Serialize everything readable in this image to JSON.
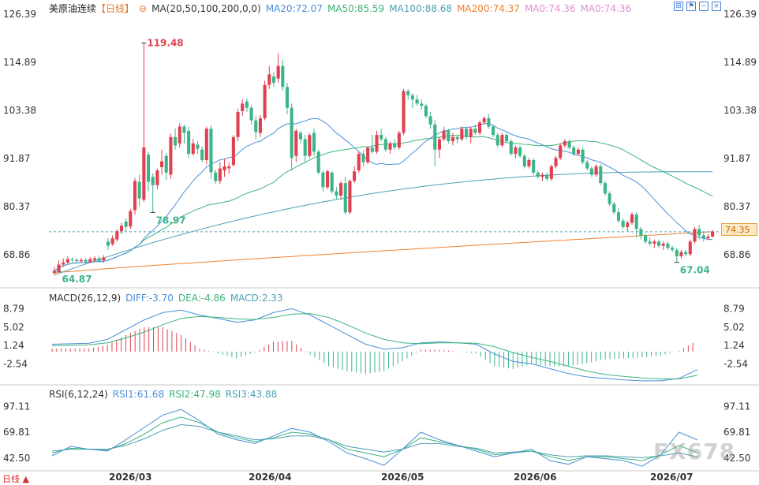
{
  "header": {
    "instrument": "美原油连续",
    "period": "【日线】",
    "main_indicator": "MA(20,50,100,200,0,0)",
    "ma20": "MA20:72.07",
    "ma50": "MA50:85.59",
    "ma100": "MA100:88.68",
    "ma200": "MA200:74.37",
    "ma0a": "MA0:74.36",
    "ma0b": "MA0:74.36"
  },
  "macd_header": {
    "name": "MACD(26,12,9)",
    "diff": "DIFF:-3.70",
    "dea": "DEA:-4.86",
    "macd": "MACD:2.33"
  },
  "rsi_header": {
    "name": "RSI(6,12,24)",
    "rsi1": "RSI1:61.68",
    "rsi2": "RSI2:47.98",
    "rsi3": "RSI3:43.88"
  },
  "current_price": "74.35",
  "bottom_label": "日线 ▲",
  "watermark": "FX678",
  "colors": {
    "up": "#e04050",
    "down": "#3cb48a",
    "ma20": "#4a90d9",
    "ma50": "#3cb47a",
    "ma100": "#4aa0b8",
    "ma200": "#f08030",
    "diff": "#4a90d9",
    "dea": "#3cb47a",
    "rsi1": "#4a90d9",
    "rsi2": "#3cb47a",
    "rsi3": "#4aa0b8",
    "axis": "#333333"
  },
  "chart_data": [
    {
      "type": "candlestick",
      "title": "美原油连续",
      "y_ticks": [
        126.39,
        114.89,
        103.38,
        91.87,
        80.37,
        68.86
      ],
      "ylim": [
        61.5,
        126.39
      ],
      "x_tick_labels": [
        "2026/03",
        "2026/04",
        "2026/05",
        "2026/06",
        "2026/07"
      ],
      "annotations": [
        {
          "text": "119.48",
          "value": 119.48,
          "kind": "high"
        },
        {
          "text": "78.97",
          "value": 78.97,
          "kind": "low"
        },
        {
          "text": "67.04",
          "value": 67.04,
          "kind": "low"
        },
        {
          "text": "64.87",
          "value": 64.87,
          "kind": "low"
        }
      ],
      "current_price": 74.35,
      "candles": [
        [
          65,
          64.5,
          66,
          64
        ],
        [
          66.5,
          65,
          67.5,
          64.87
        ],
        [
          67,
          66.5,
          68,
          66
        ],
        [
          67.8,
          67,
          68.5,
          66.5
        ],
        [
          67.6,
          67.8,
          68.2,
          67
        ],
        [
          67.3,
          67.6,
          68,
          66.8
        ],
        [
          67.6,
          67.3,
          68.1,
          66.9
        ],
        [
          67.2,
          67.6,
          68,
          66.6
        ],
        [
          67.8,
          67.2,
          68.3,
          66.8
        ],
        [
          68,
          67.6,
          68.4,
          67.1
        ],
        [
          67.3,
          68,
          68.6,
          67
        ],
        [
          68.2,
          67.5,
          68.8,
          67
        ],
        [
          71,
          72,
          72.8,
          70
        ],
        [
          72.8,
          71.4,
          73.5,
          71
        ],
        [
          74.5,
          72.5,
          75,
          72
        ],
        [
          75.8,
          74.5,
          76.5,
          73.8
        ],
        [
          75.5,
          76.8,
          77.5,
          74.5
        ],
        [
          79.3,
          75.6,
          79.8,
          75
        ],
        [
          86.5,
          79.5,
          87.2,
          78.5
        ],
        [
          82.3,
          86.3,
          88,
          80.5
        ],
        [
          94.5,
          82,
          119.48,
          81.5
        ],
        [
          86.3,
          92.8,
          93.5,
          84
        ],
        [
          85.5,
          87.5,
          88.3,
          79
        ],
        [
          89,
          85.5,
          89.5,
          84.5
        ],
        [
          91.2,
          89.8,
          94,
          88
        ],
        [
          88.5,
          92.5,
          93.2,
          86.8
        ],
        [
          97,
          88,
          97.8,
          87
        ],
        [
          95,
          97,
          99,
          94
        ],
        [
          99.5,
          95.5,
          100.3,
          94.5
        ],
        [
          98,
          99.5,
          100,
          95.5
        ],
        [
          93,
          98.5,
          99.5,
          92
        ],
        [
          95.5,
          93,
          96.5,
          92.5
        ],
        [
          94.2,
          95.2,
          96,
          93
        ],
        [
          91.5,
          94,
          94.8,
          91
        ],
        [
          99,
          91.5,
          99.5,
          90.5
        ],
        [
          88.6,
          99,
          99.8,
          87
        ],
        [
          86.5,
          88.5,
          89.2,
          85.8
        ],
        [
          89.5,
          86.5,
          91,
          85.8
        ],
        [
          90,
          89,
          91.8,
          87.5
        ],
        [
          90,
          89.5,
          91,
          88.2
        ],
        [
          97,
          90.3,
          97.5,
          90
        ],
        [
          103,
          97,
          103.8,
          96
        ],
        [
          105,
          103.2,
          106,
          102
        ],
        [
          104,
          105.5,
          106.2,
          103
        ],
        [
          101,
          104,
          104.6,
          100
        ],
        [
          98.2,
          101,
          102,
          96.5
        ],
        [
          101.5,
          98,
          102.3,
          97
        ],
        [
          109.5,
          101.5,
          110.5,
          101
        ],
        [
          112,
          109.5,
          114,
          108.5
        ],
        [
          110,
          111.5,
          112.5,
          109
        ],
        [
          114,
          111,
          117,
          110
        ],
        [
          109,
          114,
          115.5,
          108
        ],
        [
          104,
          109,
          110,
          102.5
        ],
        [
          92,
          104,
          105,
          89
        ],
        [
          98.5,
          92.5,
          99,
          91
        ],
        [
          96.5,
          98,
          98.5,
          95.5
        ],
        [
          92.5,
          96.5,
          97.5,
          91
        ],
        [
          97.5,
          92.5,
          98,
          92
        ],
        [
          93.5,
          98,
          99,
          92.5
        ],
        [
          88.5,
          93.5,
          94,
          88
        ],
        [
          85,
          88.5,
          89,
          84
        ],
        [
          88.8,
          85,
          89.2,
          84.5
        ],
        [
          84,
          88.5,
          88.8,
          83.5
        ],
        [
          83,
          84,
          85,
          82
        ],
        [
          86,
          83,
          86.5,
          82
        ],
        [
          78.97,
          86,
          87.5,
          78.5
        ],
        [
          86.5,
          79,
          86.8,
          78.5
        ],
        [
          88.8,
          86.5,
          90,
          86
        ],
        [
          93,
          89,
          93.5,
          88.5
        ],
        [
          91,
          93,
          93.8,
          90
        ],
        [
          94.5,
          91,
          94.8,
          90.5
        ],
        [
          93.5,
          94.5,
          97.5,
          93
        ],
        [
          97.5,
          93.5,
          98.5,
          93
        ],
        [
          96.5,
          97.5,
          99,
          96
        ],
        [
          94,
          96.5,
          97,
          93.5
        ],
        [
          95.5,
          94,
          96,
          93
        ],
        [
          94.5,
          95.5,
          96.5,
          94
        ],
        [
          98,
          94.5,
          98.5,
          94
        ],
        [
          108,
          98,
          108.5,
          97.5
        ],
        [
          107,
          108,
          108.5,
          106
        ],
        [
          106,
          107,
          107.5,
          104
        ],
        [
          105,
          106,
          107,
          104.5
        ],
        [
          104.5,
          105,
          106,
          103.5
        ],
        [
          102,
          104.5,
          105,
          101.5
        ],
        [
          100,
          102,
          103,
          99
        ],
        [
          94,
          100,
          101,
          90
        ],
        [
          96.5,
          94,
          97,
          92
        ],
        [
          98.5,
          96.5,
          99.5,
          96
        ],
        [
          96,
          98.5,
          99,
          95.5
        ],
        [
          97,
          96,
          98,
          95
        ],
        [
          96.5,
          97,
          97.5,
          95.5
        ],
        [
          99,
          96.5,
          99.5,
          96
        ],
        [
          97,
          99,
          99.5,
          96.5
        ],
        [
          99,
          97,
          99.5,
          95.5
        ],
        [
          98,
          99,
          100,
          97.5
        ],
        [
          100.5,
          98,
          101,
          97.5
        ],
        [
          101.5,
          100.5,
          102,
          100
        ],
        [
          99.5,
          101.5,
          102.5,
          99
        ],
        [
          97.5,
          99.5,
          100,
          97
        ],
        [
          95,
          97.5,
          98,
          94.5
        ],
        [
          97.5,
          95,
          98,
          94.5
        ],
        [
          96,
          97.5,
          98,
          95.5
        ],
        [
          93,
          96,
          96.5,
          92.5
        ],
        [
          94.5,
          93,
          95,
          92
        ],
        [
          92.5,
          94.5,
          95,
          92
        ],
        [
          90,
          92.5,
          93,
          89.5
        ],
        [
          91.5,
          90,
          92,
          89.5
        ],
        [
          88.5,
          91.5,
          92,
          88
        ],
        [
          87.5,
          88.5,
          89,
          87
        ],
        [
          88,
          87.5,
          88.5,
          86.5
        ],
        [
          87,
          88,
          88.5,
          86.5
        ],
        [
          90,
          87,
          90.5,
          86.5
        ],
        [
          92,
          90,
          92.5,
          89.5
        ],
        [
          95,
          92,
          95.5,
          91.5
        ],
        [
          96,
          95,
          96.5,
          94.5
        ],
        [
          94.5,
          96,
          96.5,
          94
        ],
        [
          93,
          94.5,
          95,
          92.5
        ],
        [
          94,
          93,
          94.5,
          92.5
        ],
        [
          91,
          94,
          94.5,
          90.5
        ],
        [
          89.5,
          91,
          91.5,
          89
        ],
        [
          88,
          89.5,
          90,
          87.5
        ],
        [
          90,
          88,
          90.5,
          87.5
        ],
        [
          86,
          90,
          90.5,
          85.5
        ],
        [
          83.5,
          86,
          86.5,
          83
        ],
        [
          81,
          83.5,
          84,
          80.5
        ],
        [
          79,
          81,
          81.5,
          78.5
        ],
        [
          77,
          79,
          80,
          76.5
        ],
        [
          75.5,
          77,
          77.5,
          75
        ],
        [
          76.5,
          75.5,
          77,
          74.5
        ],
        [
          78.5,
          76.5,
          79,
          76
        ],
        [
          75,
          78.5,
          79,
          73
        ],
        [
          73.5,
          75,
          75.5,
          72.5
        ],
        [
          72,
          73.5,
          74,
          71.5
        ],
        [
          71.5,
          72,
          73,
          71
        ],
        [
          72,
          71.5,
          72.5,
          70.5
        ],
        [
          71,
          72,
          72.5,
          70.5
        ],
        [
          71.5,
          71,
          72,
          70
        ],
        [
          70.5,
          71.5,
          72,
          70
        ],
        [
          70,
          70.5,
          71,
          69.5
        ],
        [
          68.5,
          70,
          70.5,
          67.04
        ],
        [
          69.5,
          68.5,
          70,
          68
        ],
        [
          69,
          69.5,
          70,
          68.5
        ],
        [
          72,
          69,
          72.5,
          68.5
        ],
        [
          75,
          72,
          75.5,
          71.5
        ],
        [
          73.5,
          75,
          76,
          72.5
        ],
        [
          72.8,
          73.5,
          74.2,
          72
        ],
        [
          73.2,
          72.8,
          73.8,
          72.3
        ],
        [
          74.35,
          73.2,
          74.8,
          73
        ]
      ]
    },
    {
      "type": "bar",
      "title": "MACD(26,12,9)",
      "y_ticks": [
        8.79,
        5.02,
        1.24,
        -2.54
      ],
      "ylim": [
        -6.5,
        10
      ],
      "series": [
        {
          "name": "DIFF",
          "values": [
            1.5,
            1.6,
            1.7,
            2.5,
            4.5,
            6.5,
            8.0,
            8.5,
            7.5,
            6.8,
            6.0,
            6.5,
            8.0,
            8.8,
            7.5,
            5.5,
            3.5,
            1.5,
            0.5,
            0.8,
            1.8,
            2.0,
            1.8,
            1.5,
            -0.5,
            -2.0,
            -2.5,
            -3.5,
            -4.5,
            -5.2,
            -5.5,
            -5.8,
            -6.0,
            -6.0,
            -5.5,
            -3.7
          ]
        },
        {
          "name": "DEA",
          "values": [
            1.2,
            1.3,
            1.4,
            1.8,
            2.8,
            4.0,
            5.5,
            6.8,
            7.2,
            7.0,
            6.7,
            6.6,
            7.0,
            7.7,
            7.8,
            7.0,
            5.5,
            3.8,
            2.5,
            1.8,
            1.6,
            1.8,
            1.8,
            1.7,
            1.0,
            -0.2,
            -1.2,
            -2.0,
            -3.0,
            -4.0,
            -4.7,
            -5.1,
            -5.4,
            -5.6,
            -5.6,
            -4.86
          ]
        },
        {
          "name": "MACD",
          "values": [
            0.6,
            0.6,
            0.6,
            1.4,
            3.4,
            5.0,
            5.0,
            3.4,
            0.6,
            -0.4,
            -1.4,
            -0.2,
            2.0,
            2.2,
            -0.6,
            -3.0,
            -4.0,
            -4.6,
            -4.0,
            -2.0,
            0.4,
            0.4,
            0.0,
            -0.4,
            -3.0,
            -3.6,
            -2.6,
            -3.0,
            -3.0,
            -2.4,
            -1.6,
            -1.4,
            -1.2,
            -0.8,
            0.2,
            2.33
          ]
        }
      ]
    },
    {
      "type": "line",
      "title": "RSI(6,12,24)",
      "y_ticks": [
        97.11,
        69.81,
        42.5
      ],
      "ylim": [
        30,
        105
      ],
      "series": [
        {
          "name": "RSI1",
          "values": [
            45,
            55,
            52,
            50,
            62,
            75,
            88,
            94,
            82,
            68,
            62,
            58,
            66,
            74,
            70,
            60,
            48,
            42,
            35,
            52,
            70,
            62,
            56,
            50,
            44,
            48,
            52,
            40,
            36,
            44,
            42,
            40,
            34,
            46,
            70,
            61.68
          ]
        },
        {
          "name": "RSI2",
          "values": [
            48,
            53,
            52,
            51,
            58,
            68,
            80,
            86,
            80,
            70,
            64,
            60,
            64,
            70,
            68,
            62,
            52,
            48,
            44,
            52,
            64,
            60,
            56,
            52,
            46,
            48,
            50,
            44,
            40,
            44,
            44,
            42,
            40,
            46,
            56,
            47.98
          ]
        },
        {
          "name": "RSI3",
          "values": [
            50,
            52,
            52,
            52,
            56,
            63,
            72,
            78,
            76,
            70,
            66,
            62,
            63,
            66,
            66,
            62,
            55,
            52,
            49,
            52,
            58,
            58,
            55,
            53,
            48,
            49,
            50,
            46,
            44,
            45,
            45,
            44,
            43,
            45,
            48,
            43.88
          ]
        }
      ]
    }
  ]
}
